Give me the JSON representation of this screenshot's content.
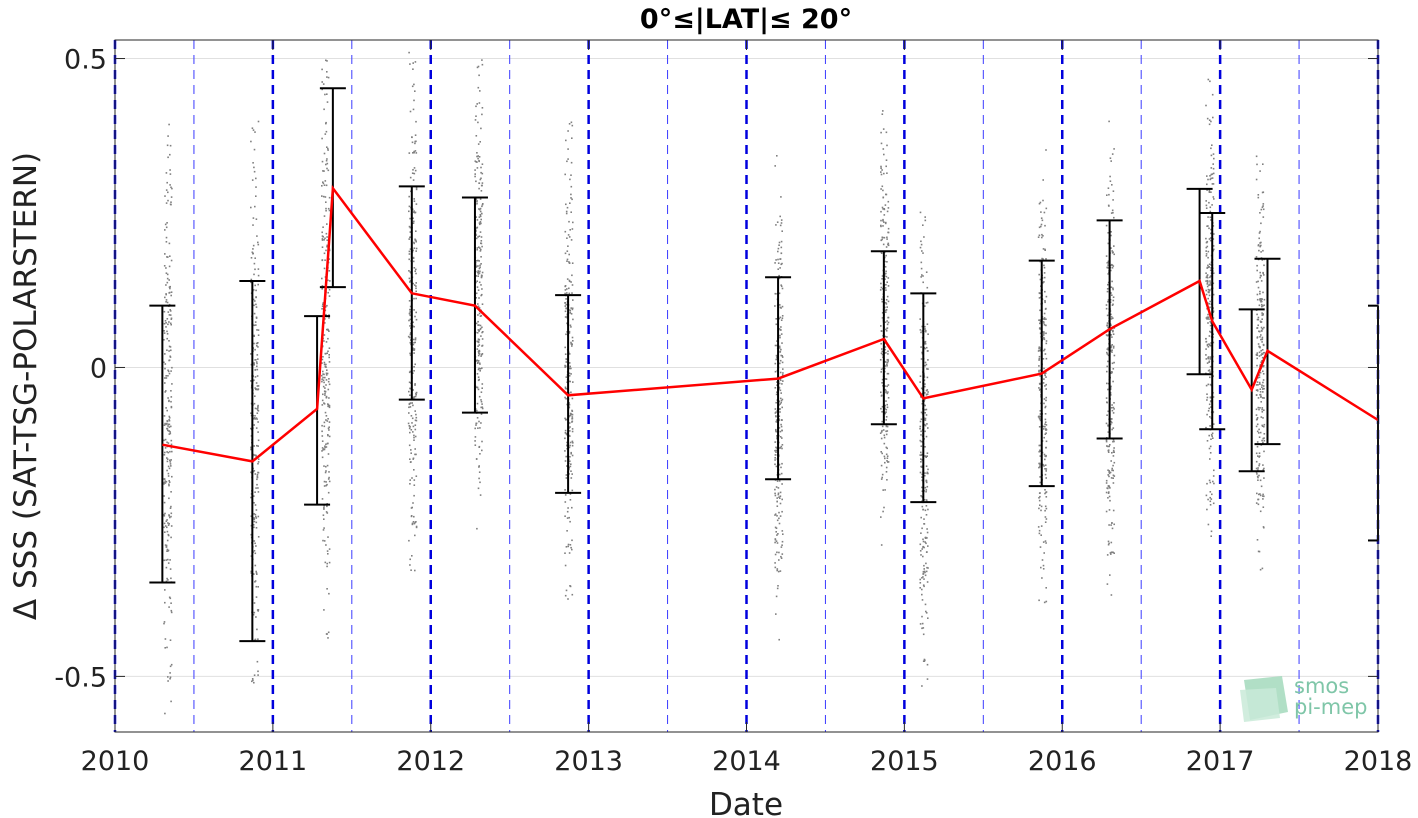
{
  "chart_data": {
    "type": "scatter",
    "title": "0°≤|LAT|≤ 20°",
    "xlabel": "Date",
    "ylabel": "Δ SSS (SAT-TSG-POLARSTERN)",
    "xlim": [
      2010,
      2018
    ],
    "ylim": [
      -0.59,
      0.53
    ],
    "x_ticks": [
      "2010",
      "2011",
      "2012",
      "2013",
      "2014",
      "2015",
      "2016",
      "2017",
      "2018"
    ],
    "y_ticks": [
      {
        "value": 0.5,
        "label": "0.5"
      },
      {
        "value": 0,
        "label": "0"
      },
      {
        "value": -0.5,
        "label": "-0.5"
      }
    ],
    "grid": true,
    "year_markers": [
      2010,
      2011,
      2012,
      2013,
      2014,
      2015,
      2016,
      2017,
      2018
    ],
    "half_year_markers": [
      2010.5,
      2011.5,
      2012.5,
      2013.5,
      2014.5,
      2015.5,
      2016.5,
      2017.5
    ],
    "colors": {
      "mean_line": "#ff0000",
      "error_bars": "#000000",
      "scatter": "#808080",
      "year_markers": "#0000dd",
      "half_year_markers": "#3b3bff",
      "grid": "#e0e0e0"
    },
    "series": [
      {
        "type": "line",
        "x": [
          2010.3,
          2010.87,
          2011.28,
          2011.38,
          2011.88,
          2012.28,
          2012.87,
          2014.2,
          2014.87,
          2015.12,
          2015.87,
          2016.3,
          2016.87,
          2016.95,
          2017.2,
          2017.3,
          2018.0
        ],
        "y": [
          -0.125,
          -0.152,
          -0.067,
          0.29,
          0.12,
          0.1,
          -0.045,
          -0.018,
          0.046,
          -0.05,
          -0.01,
          0.062,
          0.14,
          0.075,
          -0.036,
          0.027,
          -0.085
        ]
      },
      {
        "type": "errorbar",
        "x": [
          2010.3,
          2010.87,
          2011.28,
          2011.38,
          2011.88,
          2012.28,
          2012.87,
          2014.2,
          2014.87,
          2015.12,
          2015.87,
          2016.3,
          2016.87,
          2016.95,
          2017.2,
          2017.3,
          2018.0
        ],
        "low": [
          -0.348,
          -0.443,
          -0.222,
          0.13,
          -0.052,
          -0.073,
          -0.203,
          -0.181,
          -0.092,
          -0.218,
          -0.192,
          -0.115,
          -0.011,
          -0.1,
          -0.168,
          -0.124,
          -0.28
        ],
        "high": [
          0.1,
          0.14,
          0.083,
          0.452,
          0.293,
          0.275,
          0.117,
          0.146,
          0.188,
          0.12,
          0.173,
          0.238,
          0.289,
          0.25,
          0.094,
          0.176,
          0.1
        ]
      },
      {
        "type": "scatter_bands",
        "x": [
          2010.33,
          2010.88,
          2011.33,
          2011.88,
          2012.3,
          2012.87,
          2014.2,
          2014.87,
          2015.12,
          2015.87,
          2016.3,
          2016.93,
          2017.25
        ],
        "low": [
          -0.58,
          -0.55,
          -0.48,
          -0.36,
          -0.27,
          -0.4,
          -0.44,
          -0.32,
          -0.52,
          -0.4,
          -0.41,
          -0.3,
          -0.35
        ],
        "high": [
          0.45,
          0.4,
          0.52,
          0.53,
          0.53,
          0.4,
          0.36,
          0.43,
          0.28,
          0.37,
          0.43,
          0.5,
          0.35
        ]
      }
    ]
  },
  "logo": {
    "line1": "smos",
    "line2": "pi-mep"
  }
}
